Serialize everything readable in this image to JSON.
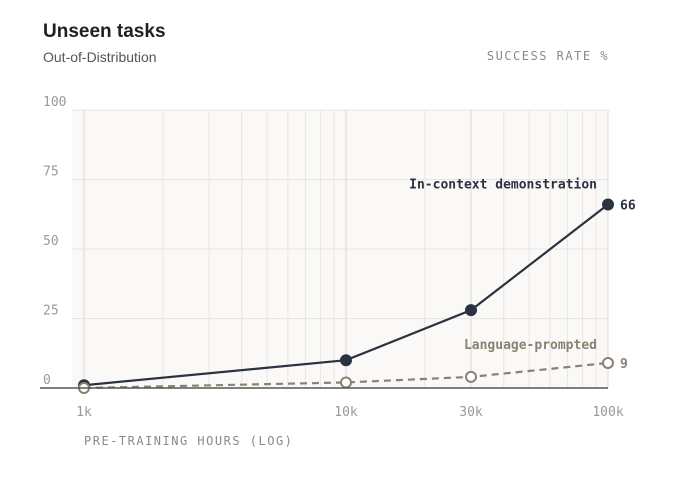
{
  "chart_data": {
    "type": "line",
    "title": "Unseen tasks",
    "subtitle": "Out-of-Distribution",
    "ylabel": "SUCCESS RATE %",
    "xlabel": "PRE-TRAINING HOURS (LOG)",
    "x_scale": "log",
    "x": [
      1000,
      10000,
      30000,
      100000
    ],
    "x_tick_labels": [
      "1k",
      "10k",
      "30k",
      "100k"
    ],
    "ylim": [
      0,
      100
    ],
    "y_ticks": [
      0,
      25,
      50,
      75,
      100
    ],
    "grid": true,
    "series": [
      {
        "name": "In-context demonstration",
        "values": [
          1,
          10,
          28,
          66
        ],
        "end_label": "66",
        "style": "solid",
        "marker": "filled",
        "color": "#2b3240"
      },
      {
        "name": "Language-prompted",
        "values": [
          0,
          2,
          4,
          9
        ],
        "end_label": "9",
        "style": "dashed",
        "marker": "hollow",
        "color": "#8b8173"
      }
    ]
  },
  "colors": {
    "plot_background": "#faf9f8",
    "grid": "#e8e6e3",
    "axis": "#555555",
    "tick_text": "#999999"
  }
}
